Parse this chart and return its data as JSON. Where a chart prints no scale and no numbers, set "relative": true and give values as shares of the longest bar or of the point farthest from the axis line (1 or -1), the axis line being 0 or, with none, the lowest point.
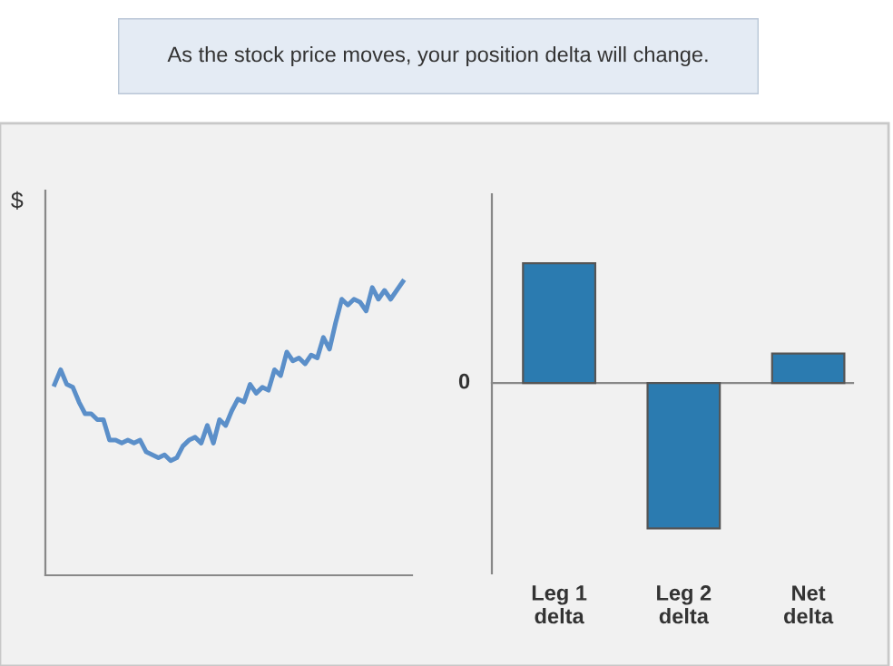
{
  "chart_data": [
    {
      "type": "other",
      "title": "As the stock price moves, your position delta will change."
    },
    {
      "type": "line",
      "ylabel": "$",
      "relative": true,
      "color": "#5b8fc9",
      "categories": [
        null,
        null,
        null,
        null,
        null,
        null,
        null,
        null,
        null,
        null,
        null,
        null,
        null,
        null,
        null,
        null,
        null,
        null,
        null,
        null,
        null,
        null,
        null,
        null,
        null,
        null,
        null,
        null,
        null,
        null,
        null,
        null,
        null,
        null,
        null,
        null,
        null,
        null,
        null,
        null,
        null,
        null,
        null,
        null,
        null,
        null,
        null,
        null,
        null,
        null,
        null,
        null,
        null,
        null,
        null,
        null,
        null,
        null
      ],
      "values": [
        0.65,
        0.7,
        0.65,
        0.64,
        0.59,
        0.55,
        0.55,
        0.53,
        0.53,
        0.46,
        0.46,
        0.45,
        0.46,
        0.45,
        0.46,
        0.42,
        0.41,
        0.4,
        0.41,
        0.39,
        0.4,
        0.44,
        0.46,
        0.47,
        0.45,
        0.51,
        0.45,
        0.53,
        0.51,
        0.56,
        0.6,
        0.59,
        0.65,
        0.62,
        0.64,
        0.63,
        0.7,
        0.68,
        0.76,
        0.73,
        0.74,
        0.72,
        0.75,
        0.74,
        0.81,
        0.77,
        0.86,
        0.94,
        0.92,
        0.94,
        0.93,
        0.9,
        0.98,
        0.94,
        0.97,
        0.94,
        0.97,
        1
      ]
    },
    {
      "type": "bar",
      "relative": true,
      "categories": [
        "Leg 1\ndelta",
        "Leg 2\ndelta",
        "Net\ndelta"
      ],
      "values": [
        0.825,
        -1,
        0.204
      ],
      "color": "#2b7bb0",
      "annotations": [
        "0"
      ]
    }
  ]
}
